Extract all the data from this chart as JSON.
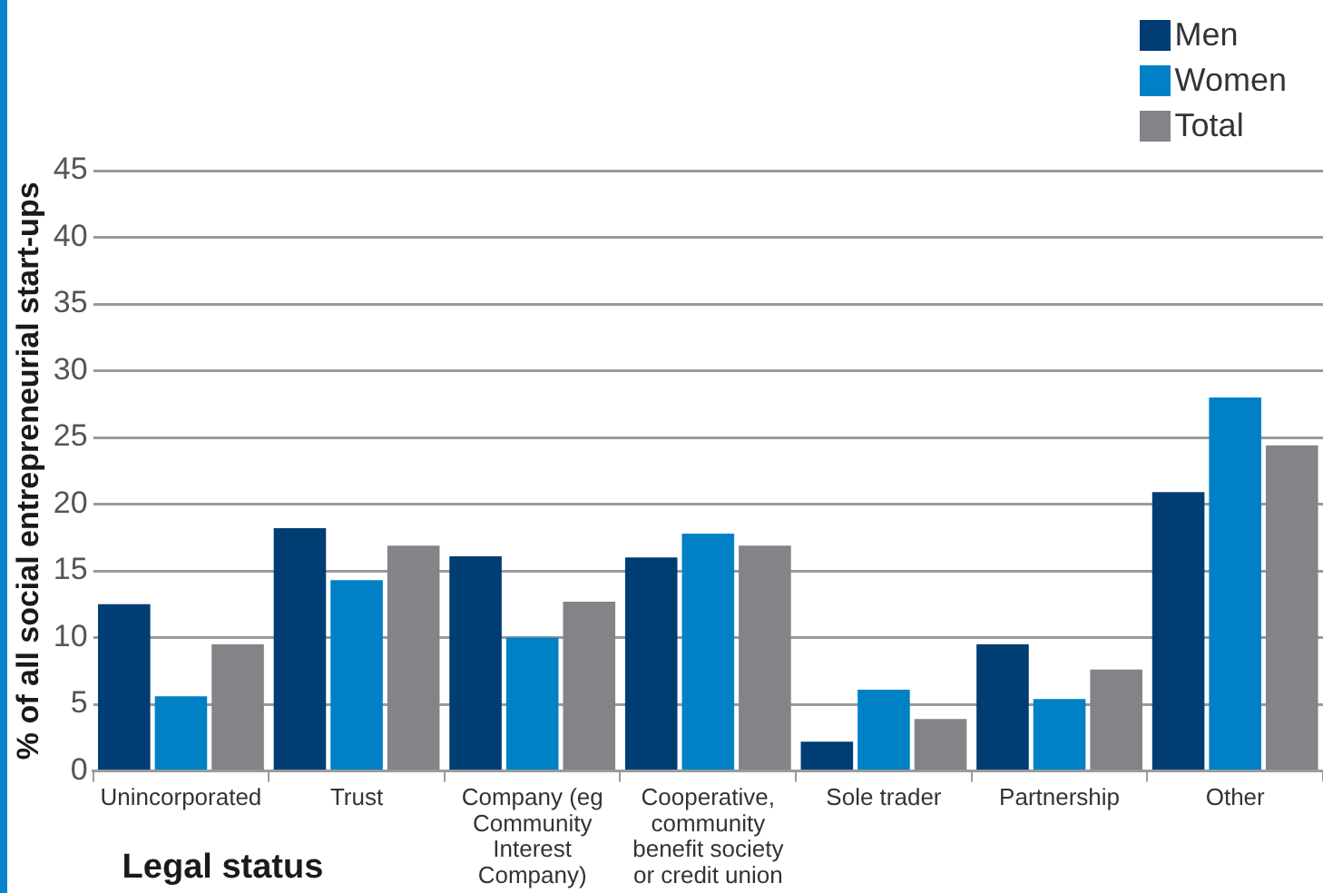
{
  "chart_data": {
    "type": "bar",
    "categories": [
      "Unincorporated",
      "Trust",
      "Company (eg Community Interest Company)",
      "Cooperative, community benefit society or credit union",
      "Sole trader",
      "Partnership",
      "Other"
    ],
    "series": [
      {
        "name": "Men",
        "color": "#003d73",
        "values": [
          12.5,
          18.2,
          16.1,
          16.0,
          2.2,
          9.5,
          20.9
        ]
      },
      {
        "name": "Women",
        "color": "#0081c6",
        "values": [
          5.6,
          14.3,
          10.0,
          17.8,
          6.1,
          5.4,
          28.0
        ]
      },
      {
        "name": "Total",
        "color": "#838488",
        "values": [
          9.5,
          16.9,
          12.7,
          16.9,
          3.9,
          7.6,
          24.4
        ]
      }
    ],
    "xlabel": "Legal status",
    "ylabel": "% of all social entrepreneurial start-ups",
    "ylim": [
      0,
      45
    ],
    "yticks": [
      0,
      5,
      10,
      15,
      20,
      25,
      30,
      35,
      40,
      45
    ],
    "grid": "y",
    "legend": "top right"
  }
}
